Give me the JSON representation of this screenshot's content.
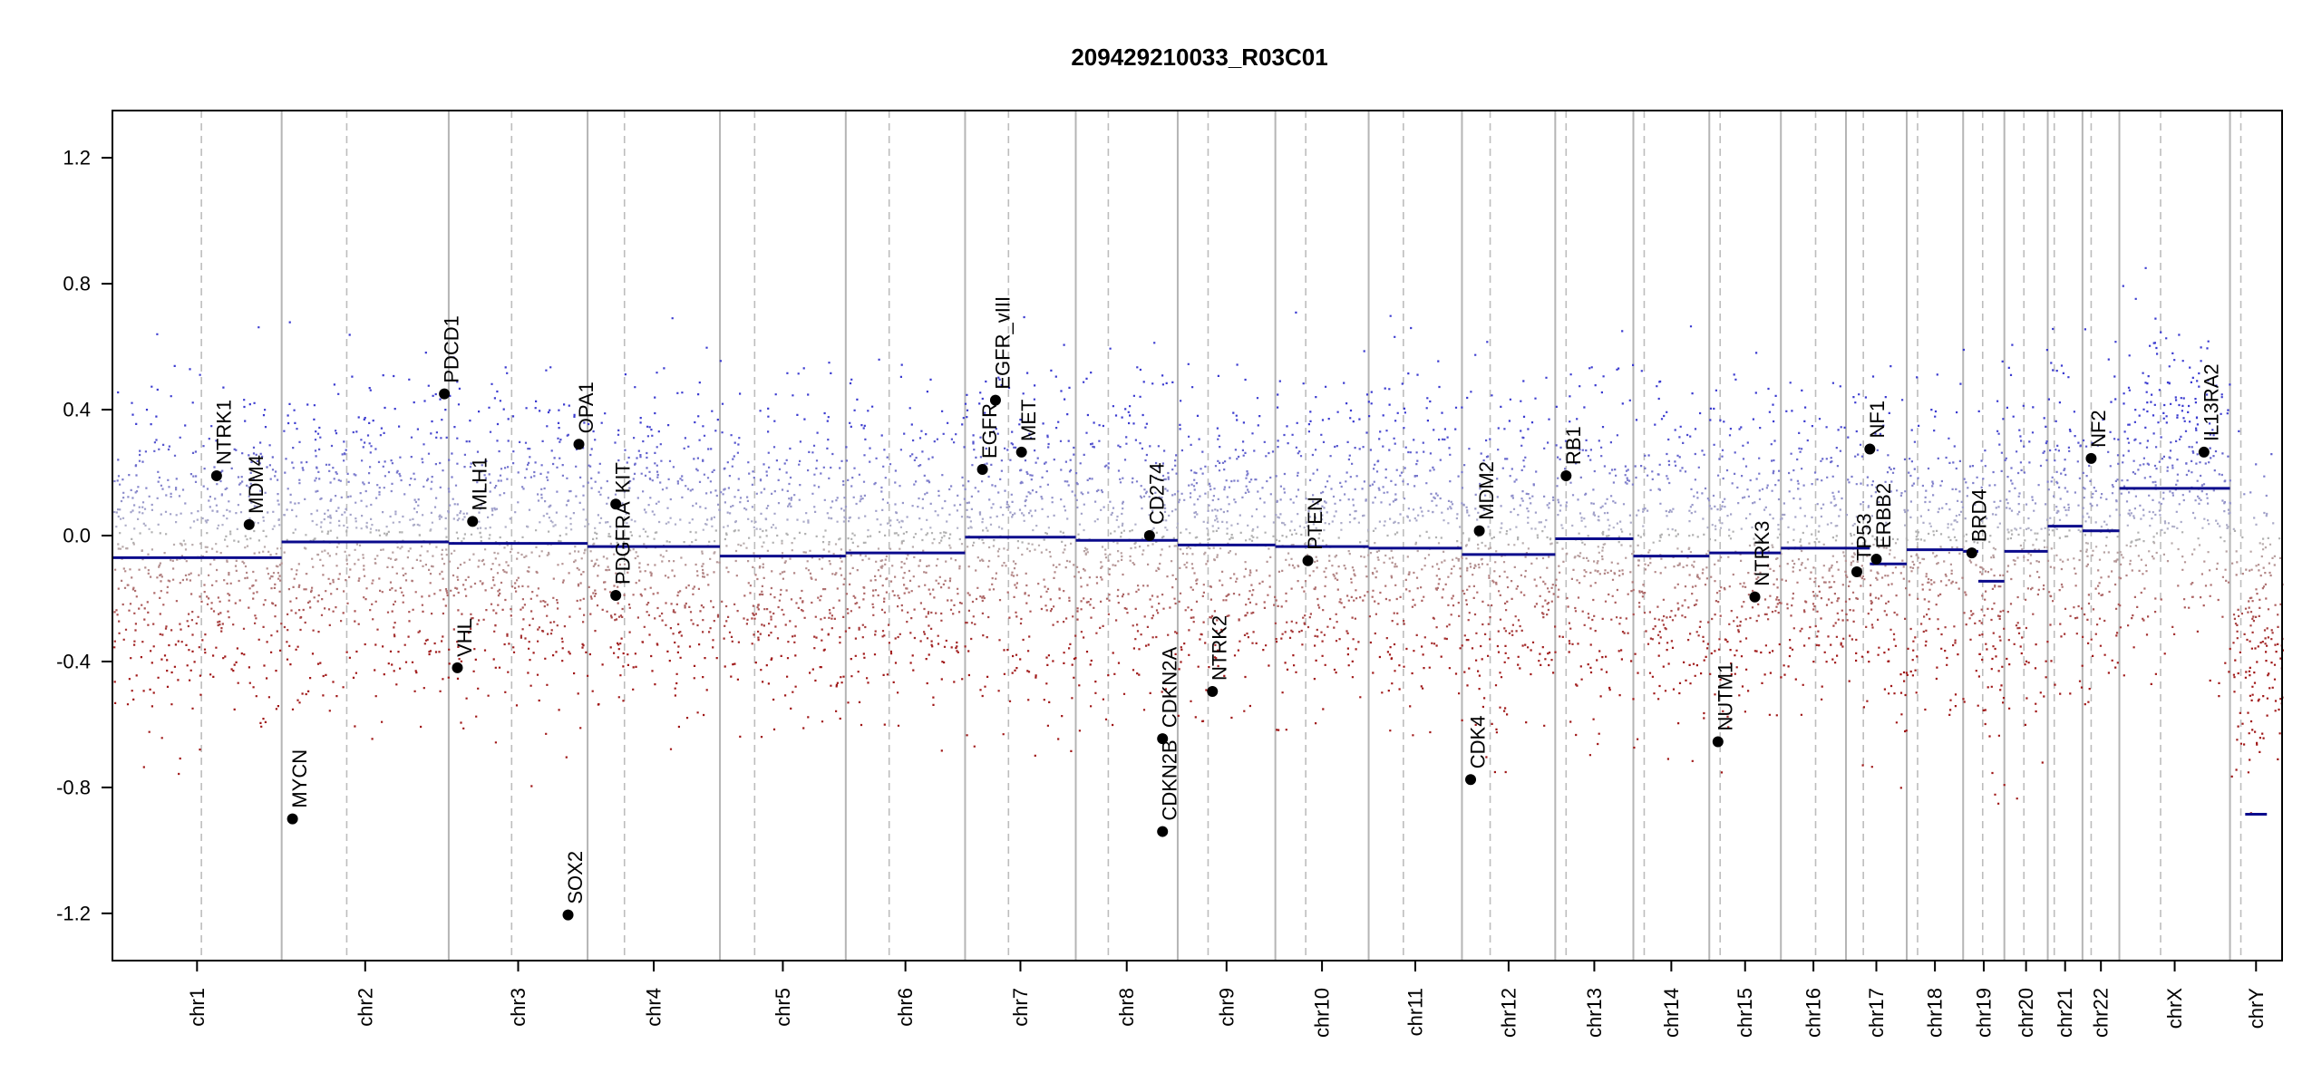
{
  "chart_data": {
    "type": "scatter",
    "title": "209429210033_R03C01",
    "xlabel": "",
    "ylabel": "",
    "ylim": [
      -1.35,
      1.35
    ],
    "y_ticks": [
      -1.2,
      -0.8,
      -0.4,
      0.0,
      0.4,
      0.8,
      1.2
    ],
    "y_tick_labels": [
      "-1.2",
      "-0.8",
      "-0.4",
      "0.0",
      "0.4",
      "0.8",
      "1.2"
    ],
    "grid": false,
    "legend": "none",
    "colors": {
      "positive_points": "#3b3bd0",
      "negative_points": "#a01818",
      "neutral_points": "#b0b0b0",
      "segment_line": "#0a0a8c",
      "gene_marker": "#000000",
      "boundary_line": "#b5b5b5",
      "centromere_line": "#bdbdbd"
    },
    "chromosomes": [
      {
        "name": "chr1",
        "start": 0.0,
        "end": 0.078,
        "centro": 0.041,
        "segments": [
          {
            "from": 0.0,
            "to": 0.078,
            "value": -0.07
          }
        ]
      },
      {
        "name": "chr2",
        "start": 0.078,
        "end": 0.155,
        "centro": 0.108,
        "segments": [
          {
            "from": 0.078,
            "to": 0.155,
            "value": -0.02
          }
        ]
      },
      {
        "name": "chr3",
        "start": 0.155,
        "end": 0.219,
        "centro": 0.184,
        "segments": [
          {
            "from": 0.155,
            "to": 0.219,
            "value": -0.025
          }
        ]
      },
      {
        "name": "chr4",
        "start": 0.219,
        "end": 0.28,
        "centro": 0.236,
        "segments": [
          {
            "from": 0.219,
            "to": 0.28,
            "value": -0.035
          }
        ]
      },
      {
        "name": "chr5",
        "start": 0.28,
        "end": 0.338,
        "centro": 0.296,
        "segments": [
          {
            "from": 0.28,
            "to": 0.338,
            "value": -0.065
          }
        ]
      },
      {
        "name": "chr6",
        "start": 0.338,
        "end": 0.393,
        "centro": 0.358,
        "segments": [
          {
            "from": 0.338,
            "to": 0.393,
            "value": -0.055
          }
        ]
      },
      {
        "name": "chr7",
        "start": 0.393,
        "end": 0.444,
        "centro": 0.413,
        "segments": [
          {
            "from": 0.393,
            "to": 0.444,
            "value": -0.005
          }
        ]
      },
      {
        "name": "chr8",
        "start": 0.444,
        "end": 0.491,
        "centro": 0.459,
        "segments": [
          {
            "from": 0.444,
            "to": 0.491,
            "value": -0.015
          }
        ]
      },
      {
        "name": "chr9",
        "start": 0.491,
        "end": 0.536,
        "centro": 0.505,
        "segments": [
          {
            "from": 0.491,
            "to": 0.536,
            "value": -0.03
          }
        ]
      },
      {
        "name": "chr10",
        "start": 0.536,
        "end": 0.579,
        "centro": 0.55,
        "segments": [
          {
            "from": 0.536,
            "to": 0.579,
            "value": -0.035
          }
        ]
      },
      {
        "name": "chr11",
        "start": 0.579,
        "end": 0.622,
        "centro": 0.595,
        "segments": [
          {
            "from": 0.579,
            "to": 0.622,
            "value": -0.04
          }
        ]
      },
      {
        "name": "chr12",
        "start": 0.622,
        "end": 0.665,
        "centro": 0.635,
        "segments": [
          {
            "from": 0.622,
            "to": 0.665,
            "value": -0.06
          }
        ]
      },
      {
        "name": "chr13",
        "start": 0.665,
        "end": 0.701,
        "centro": 0.67,
        "segments": [
          {
            "from": 0.665,
            "to": 0.701,
            "value": -0.01
          }
        ]
      },
      {
        "name": "chr14",
        "start": 0.701,
        "end": 0.736,
        "centro": 0.706,
        "segments": [
          {
            "from": 0.701,
            "to": 0.736,
            "value": -0.065
          }
        ]
      },
      {
        "name": "chr15",
        "start": 0.736,
        "end": 0.769,
        "centro": 0.741,
        "segments": [
          {
            "from": 0.736,
            "to": 0.769,
            "value": -0.055
          }
        ]
      },
      {
        "name": "chr16",
        "start": 0.769,
        "end": 0.799,
        "centro": 0.785,
        "segments": [
          {
            "from": 0.769,
            "to": 0.799,
            "value": -0.04
          }
        ]
      },
      {
        "name": "chr17",
        "start": 0.799,
        "end": 0.827,
        "centro": 0.807,
        "segments": [
          {
            "from": 0.799,
            "to": 0.81,
            "value": -0.04
          },
          {
            "from": 0.81,
            "to": 0.827,
            "value": -0.09
          }
        ]
      },
      {
        "name": "chr18",
        "start": 0.827,
        "end": 0.853,
        "centro": 0.832,
        "segments": [
          {
            "from": 0.827,
            "to": 0.853,
            "value": -0.045
          }
        ]
      },
      {
        "name": "chr19",
        "start": 0.853,
        "end": 0.872,
        "centro": 0.862,
        "segments": [
          {
            "from": 0.853,
            "to": 0.86,
            "value": -0.05
          },
          {
            "from": 0.86,
            "to": 0.872,
            "value": -0.145
          }
        ]
      },
      {
        "name": "chr20",
        "start": 0.872,
        "end": 0.892,
        "centro": 0.881,
        "segments": [
          {
            "from": 0.872,
            "to": 0.892,
            "value": -0.05
          }
        ]
      },
      {
        "name": "chr21",
        "start": 0.892,
        "end": 0.908,
        "centro": 0.895,
        "segments": [
          {
            "from": 0.892,
            "to": 0.908,
            "value": 0.03
          }
        ]
      },
      {
        "name": "chr22",
        "start": 0.908,
        "end": 0.925,
        "centro": 0.912,
        "segments": [
          {
            "from": 0.908,
            "to": 0.925,
            "value": 0.015
          }
        ]
      },
      {
        "name": "chrX",
        "start": 0.925,
        "end": 0.976,
        "centro": 0.944,
        "segments": [
          {
            "from": 0.925,
            "to": 0.976,
            "value": 0.15
          }
        ]
      },
      {
        "name": "chrY",
        "start": 0.976,
        "end": 1.0,
        "centro": 0.981,
        "segments": [
          {
            "from": 0.983,
            "to": 0.993,
            "value": -0.885
          }
        ]
      }
    ],
    "genes": [
      {
        "name": "NTRK1",
        "pos": 0.048,
        "value": 0.19
      },
      {
        "name": "MDM4",
        "pos": 0.063,
        "value": 0.035
      },
      {
        "name": "MYCN",
        "pos": 0.083,
        "value": -0.9
      },
      {
        "name": "PDCD1",
        "pos": 0.153,
        "value": 0.45
      },
      {
        "name": "VHL",
        "pos": 0.159,
        "value": -0.42
      },
      {
        "name": "MLH1",
        "pos": 0.166,
        "value": 0.045
      },
      {
        "name": "SOX2",
        "pos": 0.21,
        "value": -1.205
      },
      {
        "name": "OPA1",
        "pos": 0.215,
        "value": 0.29
      },
      {
        "name": "KIT",
        "pos": 0.232,
        "value": 0.1
      },
      {
        "name": "PDGFRA",
        "pos": 0.232,
        "value": -0.19
      },
      {
        "name": "EGFR",
        "pos": 0.401,
        "value": 0.21
      },
      {
        "name": "EGFR_vIII",
        "pos": 0.407,
        "value": 0.43
      },
      {
        "name": "MET",
        "pos": 0.419,
        "value": 0.265
      },
      {
        "name": "CD274",
        "pos": 0.478,
        "value": 0.0
      },
      {
        "name": "CDKN2A",
        "pos": 0.484,
        "value": -0.645
      },
      {
        "name": "CDKN2B",
        "pos": 0.484,
        "value": -0.94
      },
      {
        "name": "NTRK2",
        "pos": 0.507,
        "value": -0.495
      },
      {
        "name": "PTEN",
        "pos": 0.551,
        "value": -0.08
      },
      {
        "name": "MDM2",
        "pos": 0.63,
        "value": 0.015
      },
      {
        "name": "CDK4",
        "pos": 0.626,
        "value": -0.775
      },
      {
        "name": "RB1",
        "pos": 0.67,
        "value": 0.19
      },
      {
        "name": "NUTM1",
        "pos": 0.74,
        "value": -0.655
      },
      {
        "name": "NTRK3",
        "pos": 0.757,
        "value": -0.195
      },
      {
        "name": "TP53",
        "pos": 0.804,
        "value": -0.115
      },
      {
        "name": "NF1",
        "pos": 0.81,
        "value": 0.275
      },
      {
        "name": "ERBB2",
        "pos": 0.813,
        "value": -0.075
      },
      {
        "name": "BRD4",
        "pos": 0.857,
        "value": -0.055
      },
      {
        "name": "NF2",
        "pos": 0.912,
        "value": 0.245
      },
      {
        "name": "IL13RA2",
        "pos": 0.964,
        "value": 0.265
      }
    ]
  }
}
